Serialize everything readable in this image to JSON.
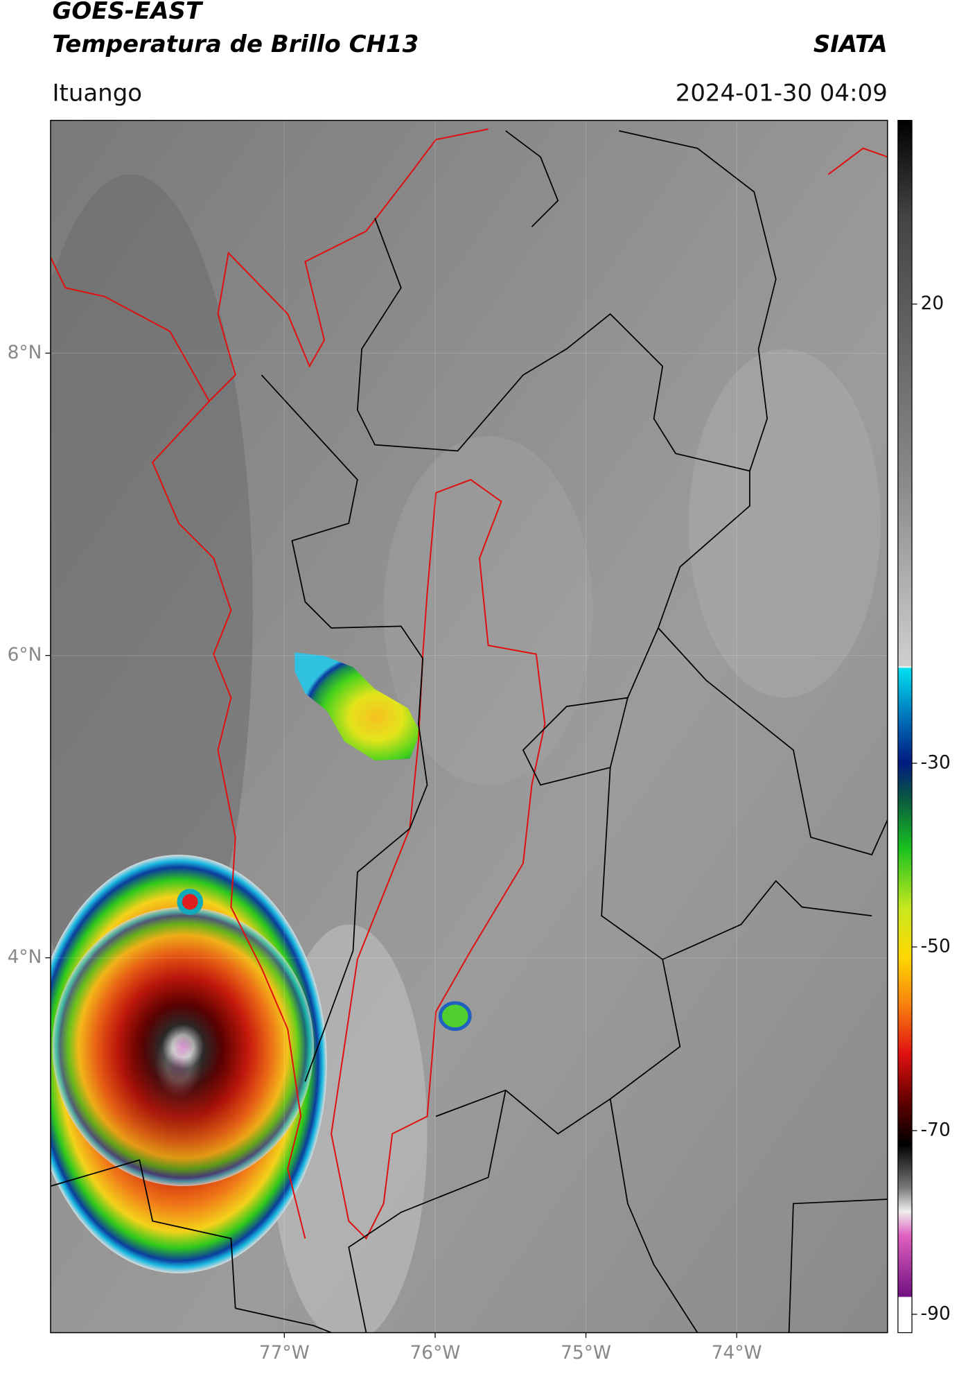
{
  "header": {
    "title": "GOES-EAST",
    "subtitle": "Temperatura de Brillo CH13",
    "source": "SIATA",
    "location": "Ituango",
    "datetime": "2024-01-30 04:09"
  },
  "map": {
    "xlim": [
      -78.55,
      -73.0
    ],
    "ylim": [
      1.52,
      9.54
    ],
    "xticks": [
      {
        "value": -77,
        "label": "77°W"
      },
      {
        "value": -76,
        "label": "76°W"
      },
      {
        "value": -75,
        "label": "75°W"
      },
      {
        "value": -74,
        "label": "74°W"
      }
    ],
    "yticks": [
      {
        "value": 8,
        "label": "8°N"
      },
      {
        "value": 6,
        "label": "6°N"
      },
      {
        "value": 4,
        "label": "4°N"
      }
    ]
  },
  "colorbar": {
    "lim": [
      -92,
      40
    ],
    "ticks": [
      20,
      -30,
      -50,
      -70,
      -90
    ]
  }
}
